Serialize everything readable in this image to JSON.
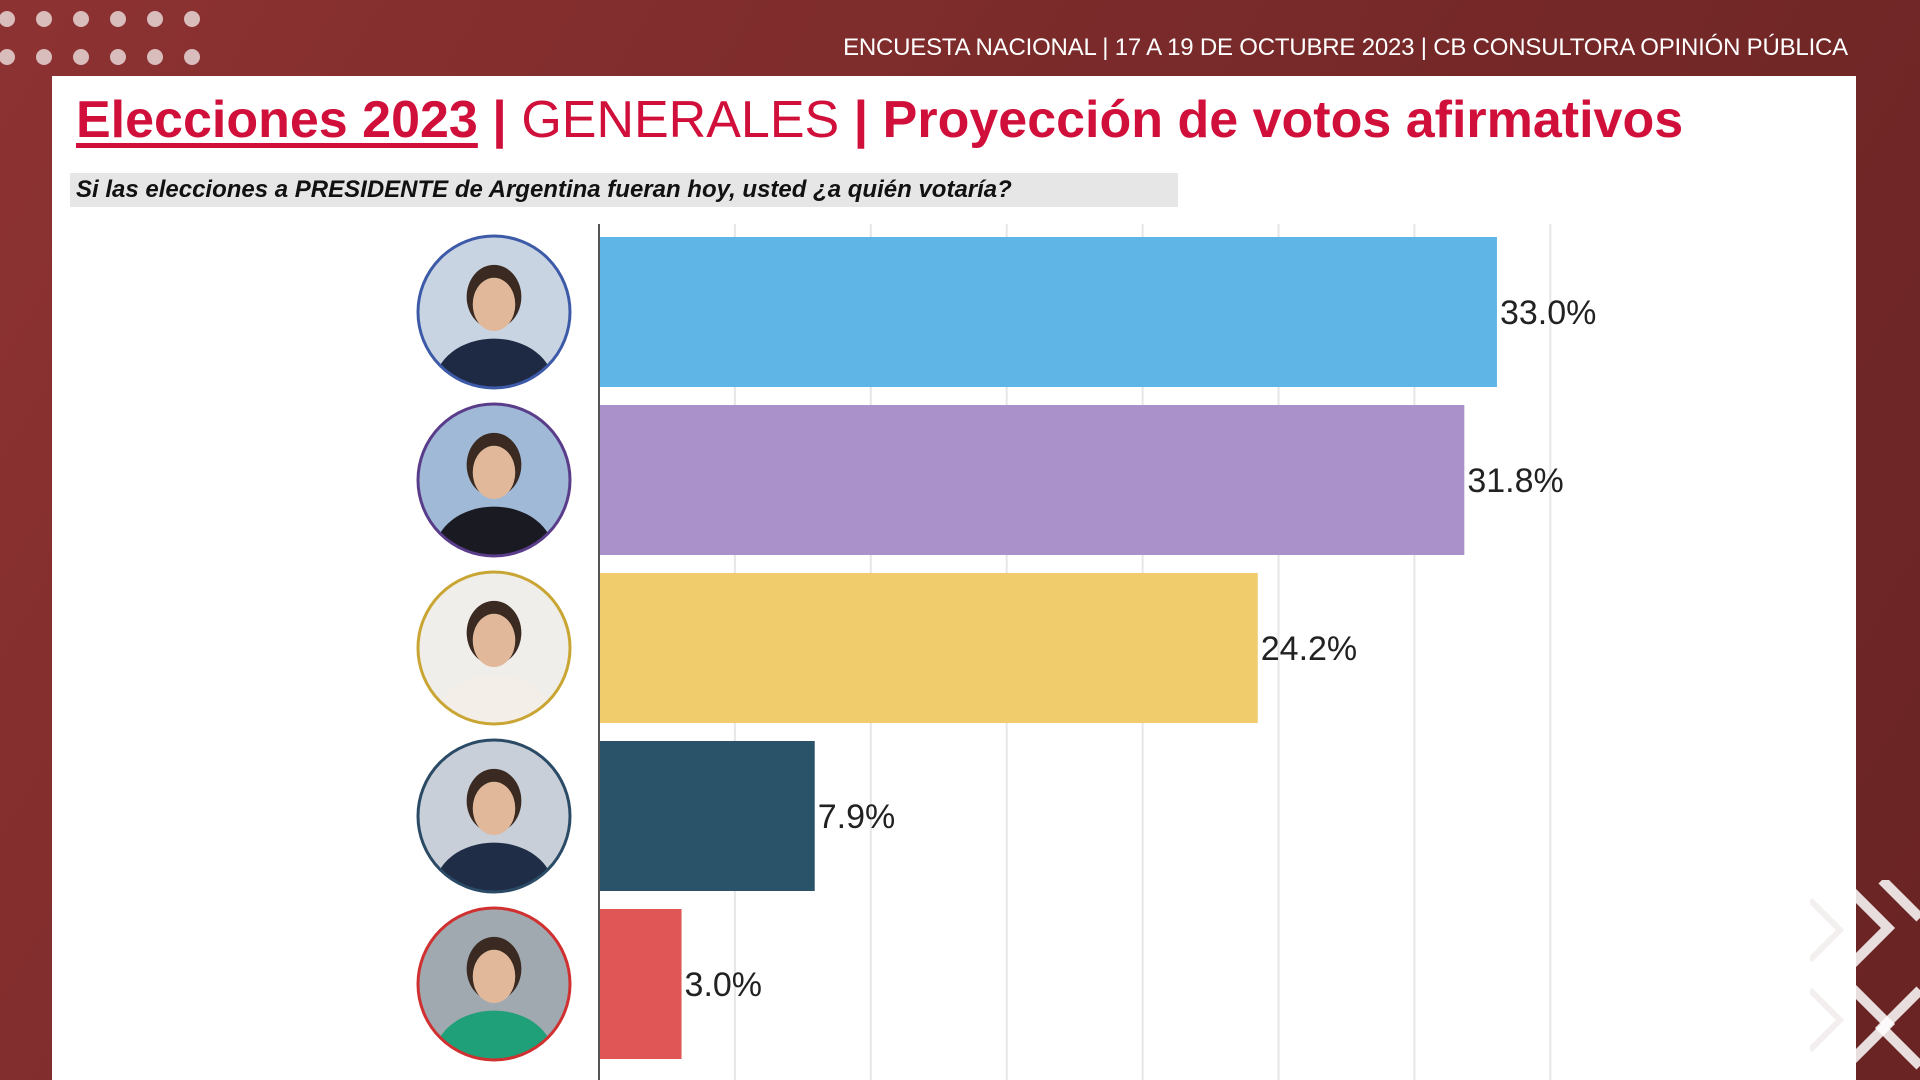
{
  "header": {
    "info": "ENCUESTA NACIONAL | 17 A 19 DE OCTUBRE 2023 | CB CONSULTORA OPINIÓN PÚBLICA"
  },
  "title": {
    "part1": "Elecciones 2023",
    "separator": "|",
    "part2": "GENERALES",
    "part3": "Proyección de votos afirmativos"
  },
  "subtitle": "Si las elecciones a PRESIDENTE de Argentina fueran hoy, usted ¿a quién votaría?",
  "colors": {
    "brand_red": "#d0103a",
    "background": "#7d2c2c"
  },
  "chart_data": {
    "type": "bar",
    "orientation": "horizontal",
    "xlim": [
      0,
      40
    ],
    "grid": true,
    "values": [
      33.0,
      31.8,
      24.2,
      7.9,
      3.0
    ],
    "labels": [
      "33.0%",
      "31.8%",
      "24.2%",
      "7.9%",
      "3.0%"
    ],
    "bar_colors": [
      "#5eb5e6",
      "#ab91c9",
      "#f0cc6c",
      "#2a5268",
      "#e05555"
    ],
    "avatar_ring_colors": [
      "#3d5aa8",
      "#5a3d8a",
      "#c9a634",
      "#2a4a66",
      "#d03030"
    ],
    "avatar_bg_colors": [
      "#c8d4e2",
      "#9fb9d6",
      "#f0eeea",
      "#c8cfd8",
      "#a0a8b0"
    ],
    "avatar_clothing_colors": [
      "#1e2a44",
      "#1a1a22",
      "#f3efe8",
      "#1f2d46",
      "#1fa078"
    ]
  }
}
